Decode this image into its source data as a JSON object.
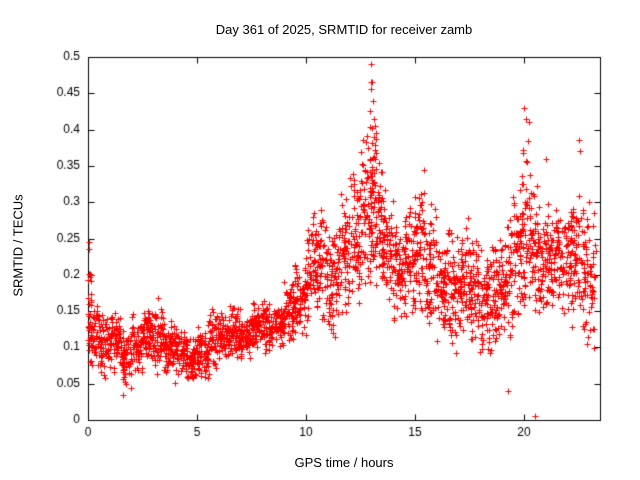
{
  "chart_data": {
    "type": "scatter",
    "title": "Day 361 of 2025, SRMTID for receiver zamb",
    "xlabel": "GPS time / hours",
    "ylabel": "SRMTID / TECUs",
    "marker": "plus",
    "marker_color": "#ff0000",
    "axis_color": "#000000",
    "background_color": "#ffffff",
    "xlim": [
      0,
      23.5
    ],
    "ylim": [
      0,
      0.5
    ],
    "xticks": [
      0,
      5,
      10,
      15,
      20
    ],
    "xtick_labels": [
      "0",
      "5",
      "10",
      "15",
      "20"
    ],
    "yticks": [
      0,
      0.05,
      0.1,
      0.15,
      0.2,
      0.25,
      0.3,
      0.35,
      0.4,
      0.45,
      0.5
    ],
    "ytick_labels": [
      "0",
      "0.05",
      "0.1",
      "0.15",
      "0.2",
      "0.25",
      "0.3",
      "0.35",
      "0.4",
      "0.45",
      "0.5"
    ],
    "grid": false,
    "legend": "none",
    "seed": 42,
    "bands": [
      [
        0.0,
        0.15,
        25,
        0.07,
        0.25
      ],
      [
        0.0,
        0.5,
        55,
        0.06,
        0.17
      ],
      [
        0.5,
        1.0,
        60,
        0.05,
        0.15
      ],
      [
        1.0,
        1.5,
        60,
        0.06,
        0.16
      ],
      [
        1.5,
        2.0,
        60,
        0.04,
        0.13
      ],
      [
        2.0,
        2.5,
        60,
        0.06,
        0.15
      ],
      [
        2.5,
        3.0,
        60,
        0.07,
        0.16
      ],
      [
        3.0,
        3.5,
        60,
        0.06,
        0.17
      ],
      [
        3.5,
        4.0,
        60,
        0.05,
        0.14
      ],
      [
        4.0,
        4.5,
        60,
        0.06,
        0.13
      ],
      [
        4.5,
        5.0,
        60,
        0.05,
        0.12
      ],
      [
        5.0,
        5.5,
        60,
        0.05,
        0.13
      ],
      [
        5.5,
        6.0,
        60,
        0.06,
        0.16
      ],
      [
        6.0,
        6.5,
        60,
        0.08,
        0.15
      ],
      [
        6.5,
        7.0,
        60,
        0.08,
        0.16
      ],
      [
        7.0,
        7.5,
        60,
        0.08,
        0.15
      ],
      [
        7.5,
        8.0,
        60,
        0.09,
        0.17
      ],
      [
        8.0,
        8.5,
        60,
        0.09,
        0.17
      ],
      [
        8.5,
        9.0,
        60,
        0.1,
        0.16
      ],
      [
        9.0,
        9.5,
        60,
        0.1,
        0.2
      ],
      [
        9.5,
        10.0,
        60,
        0.11,
        0.22
      ],
      [
        10.0,
        10.5,
        60,
        0.13,
        0.3
      ],
      [
        10.5,
        11.0,
        60,
        0.12,
        0.3
      ],
      [
        11.0,
        11.5,
        60,
        0.1,
        0.28
      ],
      [
        11.5,
        12.0,
        60,
        0.13,
        0.33
      ],
      [
        12.0,
        12.5,
        60,
        0.15,
        0.35
      ],
      [
        12.5,
        13.0,
        60,
        0.17,
        0.4
      ],
      [
        12.9,
        13.2,
        40,
        0.2,
        0.49
      ],
      [
        13.0,
        13.5,
        60,
        0.18,
        0.38
      ],
      [
        13.5,
        14.0,
        60,
        0.15,
        0.32
      ],
      [
        14.0,
        14.5,
        60,
        0.12,
        0.28
      ],
      [
        14.5,
        15.0,
        60,
        0.13,
        0.3
      ],
      [
        15.0,
        15.5,
        60,
        0.14,
        0.33
      ],
      [
        15.5,
        16.0,
        60,
        0.12,
        0.3
      ],
      [
        16.0,
        16.5,
        60,
        0.1,
        0.25
      ],
      [
        16.5,
        17.0,
        60,
        0.08,
        0.28
      ],
      [
        17.0,
        17.5,
        60,
        0.1,
        0.28
      ],
      [
        17.5,
        18.0,
        60,
        0.1,
        0.26
      ],
      [
        18.0,
        18.5,
        60,
        0.08,
        0.24
      ],
      [
        18.5,
        19.0,
        60,
        0.09,
        0.25
      ],
      [
        19.0,
        19.5,
        60,
        0.1,
        0.28
      ],
      [
        19.5,
        20.0,
        60,
        0.12,
        0.33
      ],
      [
        19.9,
        20.25,
        40,
        0.15,
        0.43
      ],
      [
        20.25,
        20.7,
        60,
        0.14,
        0.35
      ],
      [
        20.7,
        21.2,
        60,
        0.15,
        0.3
      ],
      [
        21.2,
        21.7,
        60,
        0.15,
        0.3
      ],
      [
        21.7,
        22.2,
        60,
        0.12,
        0.3
      ],
      [
        22.2,
        22.7,
        60,
        0.12,
        0.32
      ],
      [
        22.7,
        23.3,
        70,
        0.08,
        0.3
      ]
    ],
    "outliers": [
      [
        0.05,
        0.245
      ],
      [
        13.0,
        0.49
      ],
      [
        13.05,
        0.465
      ],
      [
        13.1,
        0.44
      ],
      [
        20.0,
        0.43
      ],
      [
        20.1,
        0.415
      ],
      [
        20.5,
        0.005
      ],
      [
        19.3,
        0.04
      ],
      [
        1.6,
        0.035
      ],
      [
        22.55,
        0.385
      ],
      [
        22.6,
        0.37
      ],
      [
        21.0,
        0.36
      ],
      [
        15.4,
        0.345
      ],
      [
        23.0,
        0.3
      ]
    ]
  }
}
